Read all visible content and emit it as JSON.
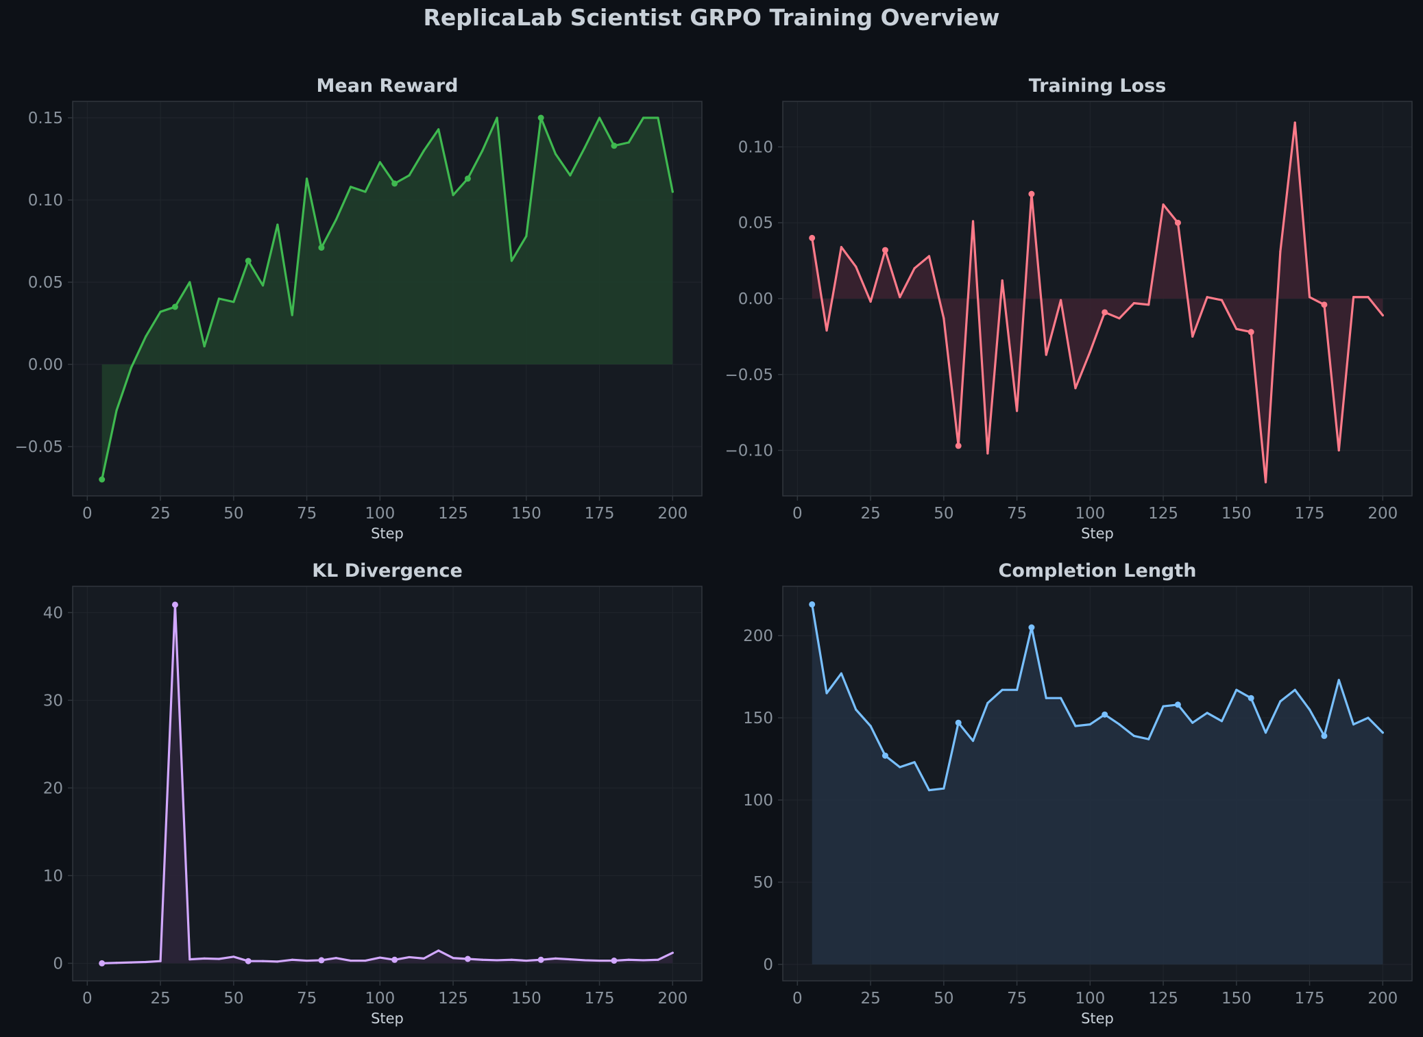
{
  "title": "ReplicaLab Scientist GRPO Training Overview",
  "colors": {
    "figure_bg": "#0d1117",
    "axes_bg": "#161b22",
    "spine": "#30363d",
    "grid": "#21262d",
    "tick_text": "#8b949e",
    "title_text": "#c9d1d9"
  },
  "chart_data": [
    {
      "type": "line",
      "title": "Mean Reward",
      "xlabel": "Step",
      "ylabel": "",
      "color": "#3fb950",
      "fill_color": "#1f3d2a",
      "xlim": [
        -5,
        210
      ],
      "ylim": [
        -0.08,
        0.16
      ],
      "xticks": [
        0,
        25,
        50,
        75,
        100,
        125,
        150,
        175,
        200
      ],
      "yticks": [
        -0.05,
        0.0,
        0.05,
        0.1,
        0.15
      ],
      "ytick_labels": [
        "−0.05",
        "0.00",
        "0.05",
        "0.10",
        "0.15"
      ],
      "x": [
        5,
        10,
        15,
        20,
        25,
        30,
        35,
        40,
        45,
        50,
        55,
        60,
        65,
        70,
        75,
        80,
        85,
        90,
        95,
        100,
        105,
        110,
        115,
        120,
        125,
        130,
        135,
        140,
        145,
        150,
        155,
        160,
        165,
        170,
        175,
        180,
        185,
        190,
        195,
        200
      ],
      "y": [
        -0.07,
        -0.028,
        -0.002,
        0.017,
        0.032,
        0.035,
        0.05,
        0.011,
        0.04,
        0.038,
        0.063,
        0.048,
        0.085,
        0.03,
        0.113,
        0.071,
        0.088,
        0.108,
        0.105,
        0.123,
        0.11,
        0.115,
        0.13,
        0.143,
        0.103,
        0.113,
        0.13,
        0.15,
        0.063,
        0.078,
        0.15,
        0.128,
        0.115,
        0.132,
        0.15,
        0.133,
        0.135,
        0.15,
        0.15,
        0.105
      ],
      "markers_x": [
        5,
        30,
        55,
        80,
        105,
        130,
        155,
        180
      ]
    },
    {
      "type": "line",
      "title": "Training Loss",
      "xlabel": "Step",
      "ylabel": "",
      "color": "#ff7b8a",
      "fill_color": "#3a2230",
      "xlim": [
        -5,
        210
      ],
      "ylim": [
        -0.13,
        0.13
      ],
      "xticks": [
        0,
        25,
        50,
        75,
        100,
        125,
        150,
        175,
        200
      ],
      "yticks": [
        -0.1,
        -0.05,
        0.0,
        0.05,
        0.1
      ],
      "ytick_labels": [
        "−0.10",
        "−0.05",
        "0.00",
        "0.05",
        "0.10"
      ],
      "x": [
        5,
        10,
        15,
        20,
        25,
        30,
        35,
        40,
        45,
        50,
        55,
        60,
        65,
        70,
        75,
        80,
        85,
        90,
        95,
        100,
        105,
        110,
        115,
        120,
        125,
        130,
        135,
        140,
        145,
        150,
        155,
        160,
        165,
        170,
        175,
        180,
        185,
        190,
        195,
        200
      ],
      "y": [
        0.04,
        -0.021,
        0.034,
        0.021,
        -0.002,
        0.032,
        0.001,
        0.02,
        0.028,
        -0.013,
        -0.097,
        0.051,
        -0.102,
        0.012,
        -0.074,
        0.069,
        -0.037,
        -0.001,
        -0.059,
        -0.035,
        -0.009,
        -0.013,
        -0.003,
        -0.004,
        0.062,
        0.05,
        -0.025,
        0.001,
        -0.001,
        -0.02,
        -0.022,
        -0.121,
        0.031,
        0.116,
        0.001,
        -0.004,
        -0.1,
        0.001,
        0.001,
        -0.011
      ],
      "markers_x": [
        5,
        30,
        55,
        80,
        105,
        130,
        155,
        180
      ]
    },
    {
      "type": "line",
      "title": "KL Divergence",
      "xlabel": "Step",
      "ylabel": "",
      "color": "#d2a8ff",
      "fill_color": "#2b2538",
      "xlim": [
        -5,
        210
      ],
      "ylim": [
        -2,
        43
      ],
      "xticks": [
        0,
        25,
        50,
        75,
        100,
        125,
        150,
        175,
        200
      ],
      "yticks": [
        0,
        10,
        20,
        30,
        40
      ],
      "ytick_labels": [
        "0",
        "10",
        "20",
        "30",
        "40"
      ],
      "x": [
        5,
        10,
        15,
        20,
        25,
        30,
        35,
        40,
        45,
        50,
        55,
        60,
        65,
        70,
        75,
        80,
        85,
        90,
        95,
        100,
        105,
        110,
        115,
        120,
        125,
        130,
        135,
        140,
        145,
        150,
        155,
        160,
        165,
        170,
        175,
        180,
        185,
        190,
        195,
        200
      ],
      "y": [
        0.0,
        0.05,
        0.1,
        0.15,
        0.25,
        40.9,
        0.45,
        0.55,
        0.5,
        0.75,
        0.25,
        0.25,
        0.2,
        0.4,
        0.3,
        0.35,
        0.6,
        0.3,
        0.3,
        0.65,
        0.4,
        0.7,
        0.55,
        1.45,
        0.6,
        0.5,
        0.4,
        0.35,
        0.4,
        0.3,
        0.4,
        0.55,
        0.45,
        0.35,
        0.3,
        0.3,
        0.4,
        0.35,
        0.4,
        1.2
      ],
      "markers_x": [
        5,
        30,
        55,
        80,
        105,
        130,
        155,
        180
      ]
    },
    {
      "type": "line",
      "title": "Completion Length",
      "xlabel": "Step",
      "ylabel": "",
      "color": "#79c0ff",
      "fill_color": "#223040",
      "xlim": [
        -5,
        210
      ],
      "ylim": [
        -10,
        230
      ],
      "xticks": [
        0,
        25,
        50,
        75,
        100,
        125,
        150,
        175,
        200
      ],
      "yticks": [
        0,
        50,
        100,
        150,
        200
      ],
      "ytick_labels": [
        "0",
        "50",
        "100",
        "150",
        "200"
      ],
      "x": [
        5,
        10,
        15,
        20,
        25,
        30,
        35,
        40,
        45,
        50,
        55,
        60,
        65,
        70,
        75,
        80,
        85,
        90,
        95,
        100,
        105,
        110,
        115,
        120,
        125,
        130,
        135,
        140,
        145,
        150,
        155,
        160,
        165,
        170,
        175,
        180,
        185,
        190,
        195,
        200
      ],
      "y": [
        219,
        165,
        177,
        155,
        145,
        127,
        120,
        123,
        106,
        107,
        147,
        136,
        159,
        167,
        167,
        205,
        162,
        162,
        145,
        146,
        152,
        146,
        139,
        137,
        157,
        158,
        147,
        153,
        148,
        167,
        162,
        141,
        160,
        167,
        155,
        139,
        173,
        146,
        150,
        141
      ],
      "markers_x": [
        5,
        30,
        55,
        80,
        105,
        130,
        155,
        180
      ]
    }
  ]
}
